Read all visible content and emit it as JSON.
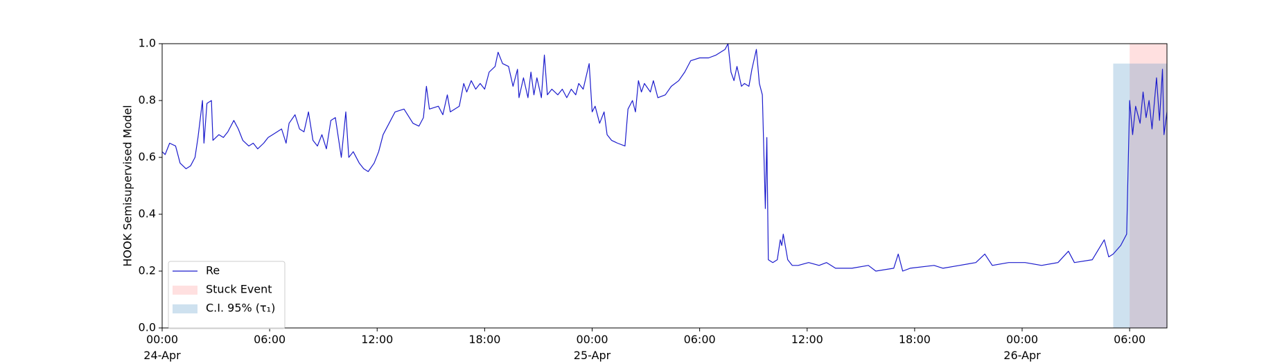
{
  "chart_data": {
    "type": "line",
    "ylabel": "HOOK Semisupervised Model",
    "x": [
      "1900-04-24T00:00",
      "1900-04-24T00:10",
      "1900-04-24T00:25",
      "1900-04-24T00:45",
      "1900-04-24T01:00",
      "1900-04-24T01:20",
      "1900-04-24T01:35",
      "1900-04-24T01:50",
      "1900-04-24T02:00",
      "1900-04-24T02:15",
      "1900-04-24T02:20",
      "1900-04-24T02:30",
      "1900-04-24T02:45",
      "1900-04-24T02:50",
      "1900-04-24T03:10",
      "1900-04-24T03:25",
      "1900-04-24T03:40",
      "1900-04-24T04:00",
      "1900-04-24T04:15",
      "1900-04-24T04:30",
      "1900-04-24T04:50",
      "1900-04-24T05:05",
      "1900-04-24T05:20",
      "1900-04-24T05:40",
      "1900-04-24T05:55",
      "1900-04-24T06:10",
      "1900-04-24T06:40",
      "1900-04-24T06:55",
      "1900-04-24T07:05",
      "1900-04-24T07:25",
      "1900-04-24T07:40",
      "1900-04-24T07:55",
      "1900-04-24T08:10",
      "1900-04-24T08:25",
      "1900-04-24T08:40",
      "1900-04-24T08:55",
      "1900-04-24T09:10",
      "1900-04-24T09:25",
      "1900-04-24T09:40",
      "1900-04-24T10:00",
      "1900-04-24T10:15",
      "1900-04-24T10:25",
      "1900-04-24T10:40",
      "1900-04-24T11:00",
      "1900-04-24T11:15",
      "1900-04-24T11:30",
      "1900-04-24T11:50",
      "1900-04-24T12:05",
      "1900-04-24T12:20",
      "1900-04-24T12:40",
      "1900-04-24T13:00",
      "1900-04-24T13:30",
      "1900-04-24T14:00",
      "1900-04-24T14:20",
      "1900-04-24T14:35",
      "1900-04-24T14:45",
      "1900-04-24T14:55",
      "1900-04-24T15:25",
      "1900-04-24T15:40",
      "1900-04-24T15:55",
      "1900-04-24T16:05",
      "1900-04-24T16:35",
      "1900-04-24T16:50",
      "1900-04-24T17:00",
      "1900-04-24T17:15",
      "1900-04-24T17:30",
      "1900-04-24T17:45",
      "1900-04-24T18:00",
      "1900-04-24T18:15",
      "1900-04-24T18:35",
      "1900-04-24T18:45",
      "1900-04-24T19:00",
      "1900-04-24T19:20",
      "1900-04-24T19:35",
      "1900-04-24T19:50",
      "1900-04-24T19:55",
      "1900-04-24T20:10",
      "1900-04-24T20:25",
      "1900-04-24T20:35",
      "1900-04-24T20:45",
      "1900-04-24T20:55",
      "1900-04-24T21:10",
      "1900-04-24T21:20",
      "1900-04-24T21:30",
      "1900-04-24T21:45",
      "1900-04-24T22:05",
      "1900-04-24T22:20",
      "1900-04-24T22:35",
      "1900-04-24T22:50",
      "1900-04-24T23:05",
      "1900-04-24T23:15",
      "1900-04-24T23:30",
      "1900-04-24T23:50",
      "1900-04-25T00:00",
      "1900-04-25T00:10",
      "1900-04-25T00:25",
      "1900-04-25T00:40",
      "1900-04-25T00:50",
      "1900-04-25T01:05",
      "1900-04-25T01:25",
      "1900-04-25T01:50",
      "1900-04-25T02:00",
      "1900-04-25T02:15",
      "1900-04-25T02:25",
      "1900-04-25T02:35",
      "1900-04-25T02:45",
      "1900-04-25T02:55",
      "1900-04-25T03:15",
      "1900-04-25T03:25",
      "1900-04-25T03:40",
      "1900-04-25T04:05",
      "1900-04-25T04:25",
      "1900-04-25T04:50",
      "1900-04-25T05:10",
      "1900-04-25T05:30",
      "1900-04-25T06:00",
      "1900-04-25T06:30",
      "1900-04-25T06:55",
      "1900-04-25T07:25",
      "1900-04-25T07:35",
      "1900-04-25T07:45",
      "1900-04-25T07:55",
      "1900-04-25T08:05",
      "1900-04-25T08:20",
      "1900-04-25T08:30",
      "1900-04-25T08:45",
      "1900-04-25T08:55",
      "1900-04-25T09:10",
      "1900-04-25T09:20",
      "1900-04-25T09:30",
      "1900-04-25T09:40",
      "1900-04-25T09:45",
      "1900-04-25T09:50",
      "1900-04-25T10:05",
      "1900-04-25T10:20",
      "1900-04-25T10:30",
      "1900-04-25T10:35",
      "1900-04-25T10:40",
      "1900-04-25T10:55",
      "1900-04-25T11:10",
      "1900-04-25T11:30",
      "1900-04-25T12:05",
      "1900-04-25T12:40",
      "1900-04-25T13:05",
      "1900-04-25T13:35",
      "1900-04-25T14:30",
      "1900-04-25T15:25",
      "1900-04-25T15:50",
      "1900-04-25T16:50",
      "1900-04-25T17:05",
      "1900-04-25T17:20",
      "1900-04-25T17:45",
      "1900-04-25T19:05",
      "1900-04-25T19:35",
      "1900-04-25T20:30",
      "1900-04-25T21:25",
      "1900-04-25T21:55",
      "1900-04-25T22:20",
      "1900-04-25T23:15",
      "1900-04-26T00:10",
      "1900-04-26T01:05",
      "1900-04-26T02:00",
      "1900-04-26T02:35",
      "1900-04-26T02:55",
      "1900-04-26T03:55",
      "1900-04-26T04:35",
      "1900-04-26T04:50",
      "1900-04-26T05:05",
      "1900-04-26T05:30",
      "1900-04-26T05:50",
      "1900-04-26T06:00",
      "1900-04-26T06:10",
      "1900-04-26T06:20",
      "1900-04-26T06:35",
      "1900-04-26T06:45",
      "1900-04-26T06:55",
      "1900-04-26T07:05",
      "1900-04-26T07:15",
      "1900-04-26T07:30",
      "1900-04-26T07:40",
      "1900-04-26T07:50",
      "1900-04-26T07:55",
      "1900-04-26T08:05"
    ],
    "series": [
      {
        "name": "Re",
        "color": "#1a1acc",
        "values": [
          0.62,
          0.61,
          0.65,
          0.64,
          0.58,
          0.56,
          0.57,
          0.6,
          0.67,
          0.8,
          0.65,
          0.79,
          0.8,
          0.66,
          0.68,
          0.67,
          0.69,
          0.73,
          0.7,
          0.66,
          0.64,
          0.65,
          0.63,
          0.65,
          0.67,
          0.68,
          0.7,
          0.65,
          0.72,
          0.75,
          0.7,
          0.69,
          0.76,
          0.66,
          0.64,
          0.68,
          0.63,
          0.73,
          0.74,
          0.6,
          0.76,
          0.6,
          0.62,
          0.58,
          0.56,
          0.55,
          0.58,
          0.62,
          0.68,
          0.72,
          0.76,
          0.77,
          0.72,
          0.71,
          0.74,
          0.85,
          0.77,
          0.78,
          0.75,
          0.82,
          0.76,
          0.78,
          0.86,
          0.83,
          0.87,
          0.84,
          0.86,
          0.84,
          0.9,
          0.92,
          0.97,
          0.93,
          0.92,
          0.85,
          0.91,
          0.81,
          0.88,
          0.81,
          0.9,
          0.82,
          0.88,
          0.81,
          0.96,
          0.82,
          0.84,
          0.82,
          0.84,
          0.81,
          0.84,
          0.82,
          0.86,
          0.84,
          0.93,
          0.76,
          0.78,
          0.72,
          0.76,
          0.68,
          0.66,
          0.65,
          0.64,
          0.77,
          0.8,
          0.76,
          0.87,
          0.83,
          0.86,
          0.83,
          0.87,
          0.81,
          0.82,
          0.85,
          0.87,
          0.9,
          0.94,
          0.95,
          0.95,
          0.96,
          0.98,
          1.0,
          0.9,
          0.87,
          0.92,
          0.85,
          0.86,
          0.85,
          0.91,
          0.98,
          0.86,
          0.82,
          0.42,
          0.67,
          0.24,
          0.23,
          0.24,
          0.31,
          0.29,
          0.33,
          0.24,
          0.22,
          0.22,
          0.23,
          0.22,
          0.23,
          0.21,
          0.21,
          0.22,
          0.2,
          0.21,
          0.26,
          0.2,
          0.21,
          0.22,
          0.21,
          0.22,
          0.23,
          0.26,
          0.22,
          0.23,
          0.23,
          0.22,
          0.23,
          0.27,
          0.23,
          0.24,
          0.31,
          0.25,
          0.26,
          0.29,
          0.33,
          0.8,
          0.68,
          0.78,
          0.72,
          0.83,
          0.74,
          0.8,
          0.7,
          0.88,
          0.73,
          0.91,
          0.68,
          0.76
        ]
      }
    ],
    "spans": [
      {
        "name": "Stuck Event",
        "color": "rgba(255,0,0,0.12)",
        "x": [
          "1900-04-26T06:00",
          "1900-04-26T08:05"
        ],
        "y": [
          0,
          1
        ]
      },
      {
        "name": "C.I. 95% (τ₁)",
        "color": "rgba(31,119,180,0.22)",
        "x": [
          "1900-04-26T05:05",
          "1900-04-26T08:05"
        ],
        "y": [
          0,
          0.93
        ]
      }
    ],
    "xlim": [
      "1900-04-24T00:00",
      "1900-04-26T08:05"
    ],
    "xticks": [
      {
        "value": "1900-04-24T00:00",
        "label": "00:00\n24-Apr\n1900"
      },
      {
        "value": "1900-04-24T06:00",
        "label": "06:00"
      },
      {
        "value": "1900-04-24T12:00",
        "label": "12:00"
      },
      {
        "value": "1900-04-24T18:00",
        "label": "18:00"
      },
      {
        "value": "1900-04-25T00:00",
        "label": "00:00\n25-Apr"
      },
      {
        "value": "1900-04-25T06:00",
        "label": "06:00"
      },
      {
        "value": "1900-04-25T12:00",
        "label": "12:00"
      },
      {
        "value": "1900-04-25T18:00",
        "label": "18:00"
      },
      {
        "value": "1900-04-26T00:00",
        "label": "00:00\n26-Apr"
      },
      {
        "value": "1900-04-26T06:00",
        "label": "06:00"
      }
    ],
    "ylim": [
      0,
      1
    ],
    "yticks": [
      {
        "value": 0,
        "label": "0.0"
      },
      {
        "value": 0.2,
        "label": "0.2"
      },
      {
        "value": 0.4,
        "label": "0.4"
      },
      {
        "value": 0.6,
        "label": "0.6"
      },
      {
        "value": 0.8,
        "label": "0.8"
      },
      {
        "value": 1,
        "label": "1.0"
      }
    ],
    "grid": false,
    "legend": "lower left"
  }
}
